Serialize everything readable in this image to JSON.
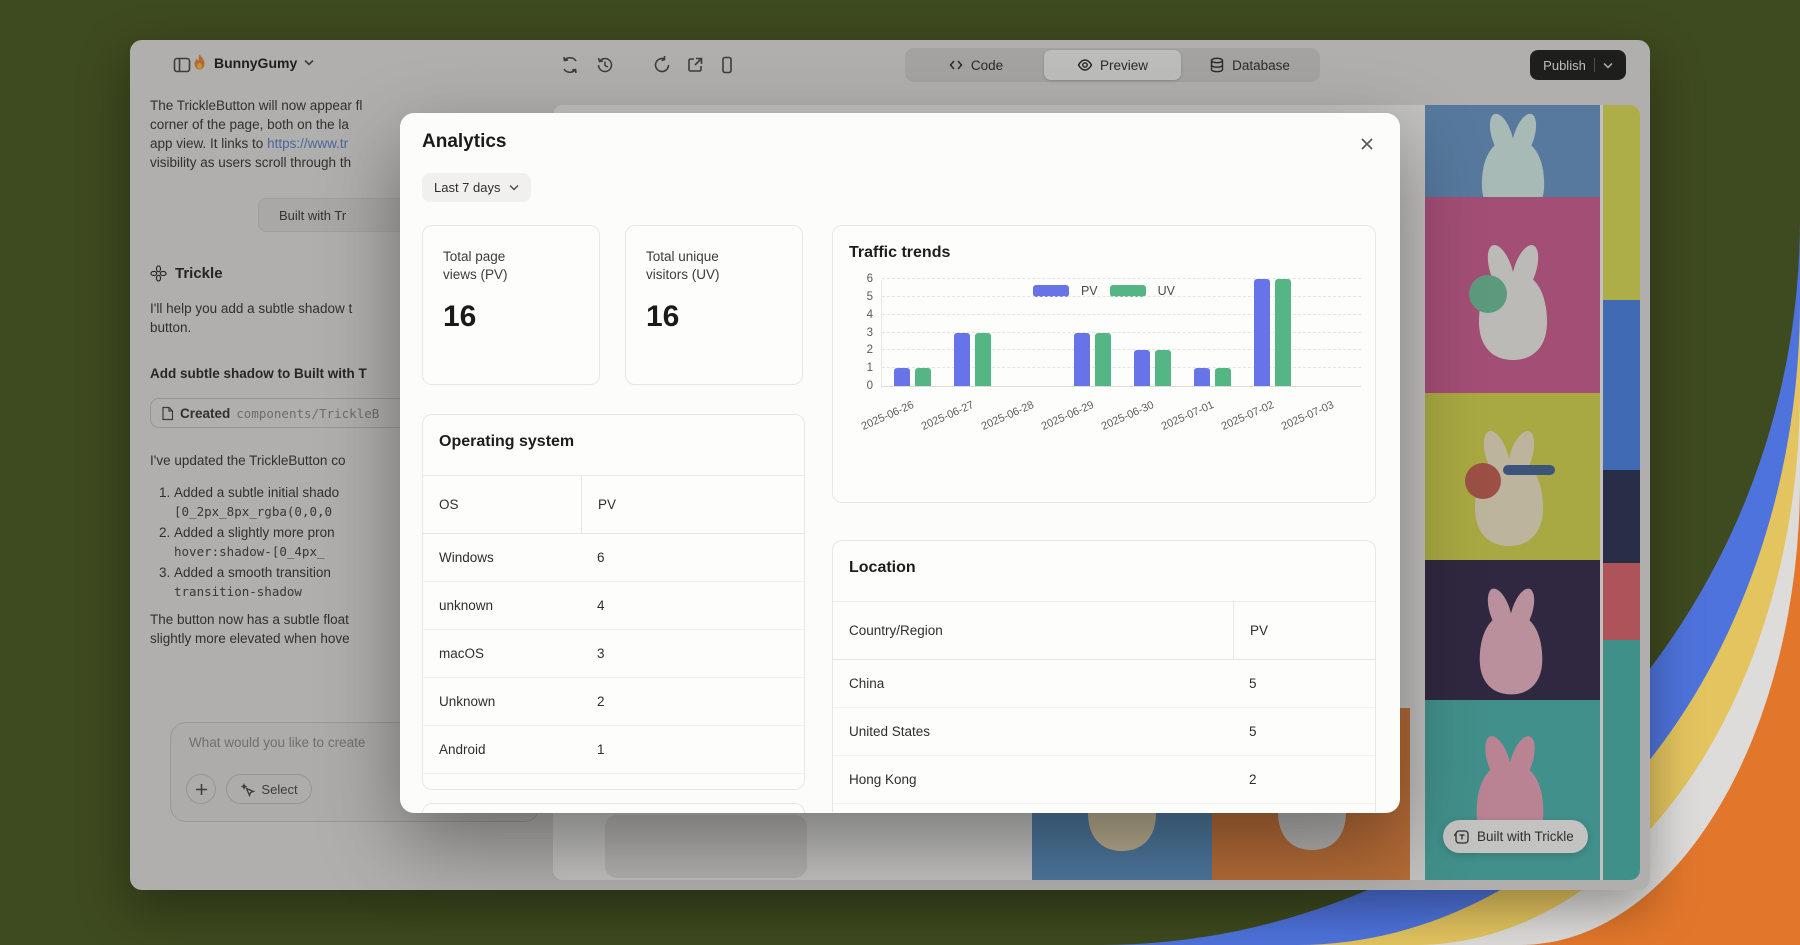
{
  "theme": {
    "wallpaper_green": "#3E4A1F",
    "band_blue": "#4E73DC",
    "band_yellow": "#E3C45F",
    "band_white": "#DDDCDA",
    "band_orange": "#E2772B",
    "pv_color": "#6674E8",
    "uv_color": "#55B685"
  },
  "icons": {
    "sidebar-toggle-icon": "panel-left",
    "fire-icon": "flame",
    "sync-icon": "circular-arrows",
    "history-icon": "clock-restore",
    "reload-icon": "refresh-arrow",
    "open-external-icon": "box-arrow",
    "mobile-preview-icon": "phone",
    "code-icon": "angle-brackets",
    "eye-icon": "eye",
    "database-icon": "cylinder",
    "chevron-down-icon": "v",
    "close-icon": "x",
    "flower-icon": "trickle-flower",
    "file-icon": "document",
    "plus-icon": "+",
    "select-cursor-icon": "sparkle",
    "chat-bubble-icon": "speech-bubble",
    "arrow-up-icon": "up",
    "trickle-badge-icon": "T-square"
  },
  "topbar": {
    "project_name": "BunnyGumy",
    "tabs": [
      {
        "label": "Code"
      },
      {
        "label": "Preview"
      },
      {
        "label": "Database"
      }
    ],
    "active_tab": "Preview",
    "publish_label": "Publish"
  },
  "chat": {
    "para1_l1": "The TrickleButton will now appear fl",
    "para1_l2": "corner of the page, both on the la",
    "para1_l3_prefix": "app view. It links to ",
    "para1_l3_link": "https://www.tr",
    "para1_l4": "visibility as users scroll through th",
    "builtwith_button": "Built with Tr",
    "assistant_name": "Trickle",
    "intro_l1": "I'll help you add a subtle shadow t",
    "intro_l2": "button.",
    "user_request": "Add subtle shadow to Built with T",
    "created_label": "Created",
    "created_path": "components/TrickleB",
    "updated_line": "I've updated the TrickleButton co",
    "steps": [
      {
        "text": "Added a subtle initial shado",
        "code": "[0_2px_8px_rgba(0,0,0"
      },
      {
        "text": "Added a slightly more pron",
        "code": "hover:shadow-[0_4px_"
      },
      {
        "text": "Added a smooth transition",
        "code": "transition-shadow"
      }
    ],
    "closing_l1": "The button now has a subtle float",
    "closing_l2": "slightly more elevated when hove",
    "composer": {
      "placeholder": "What would you like to create",
      "select_label": "Select"
    }
  },
  "preview": {
    "badge_label": "Built with Trickle"
  },
  "modal": {
    "title": "Analytics",
    "range_label": "Last 7 days",
    "stats": [
      {
        "label_l1": "Total page",
        "label_l2": "views (PV)",
        "value": "16"
      },
      {
        "label_l1": "Total unique",
        "label_l2": "visitors (UV)",
        "value": "16"
      }
    ],
    "os_table": {
      "title": "Operating system",
      "col1": "OS",
      "col2": "PV",
      "rows": [
        [
          "Windows",
          "6"
        ],
        [
          "unknown",
          "4"
        ],
        [
          "macOS",
          "3"
        ],
        [
          "Unknown",
          "2"
        ],
        [
          "Android",
          "1"
        ]
      ]
    },
    "location_table": {
      "title": "Location",
      "col1": "Country/Region",
      "col2": "PV",
      "rows": [
        [
          "China",
          "5"
        ],
        [
          "United States",
          "5"
        ],
        [
          "Hong Kong",
          "2"
        ]
      ]
    }
  },
  "chart_data": {
    "type": "bar",
    "title": "Traffic trends",
    "categories": [
      "2025-06-26",
      "2025-06-27",
      "2025-06-28",
      "2025-06-29",
      "2025-06-30",
      "2025-07-01",
      "2025-07-02",
      "2025-07-03"
    ],
    "series": [
      {
        "name": "PV",
        "color": "#6674E8",
        "values": [
          1,
          3,
          0,
          3,
          2,
          1,
          6,
          0
        ]
      },
      {
        "name": "UV",
        "color": "#55B685",
        "values": [
          1,
          3,
          0,
          3,
          2,
          1,
          6,
          0
        ]
      }
    ],
    "ylim": [
      0,
      6
    ],
    "yticks": [
      0,
      1,
      2,
      3,
      4,
      5,
      6
    ],
    "xlabel": "",
    "ylabel": "",
    "grid": true,
    "legend_position": "top"
  }
}
